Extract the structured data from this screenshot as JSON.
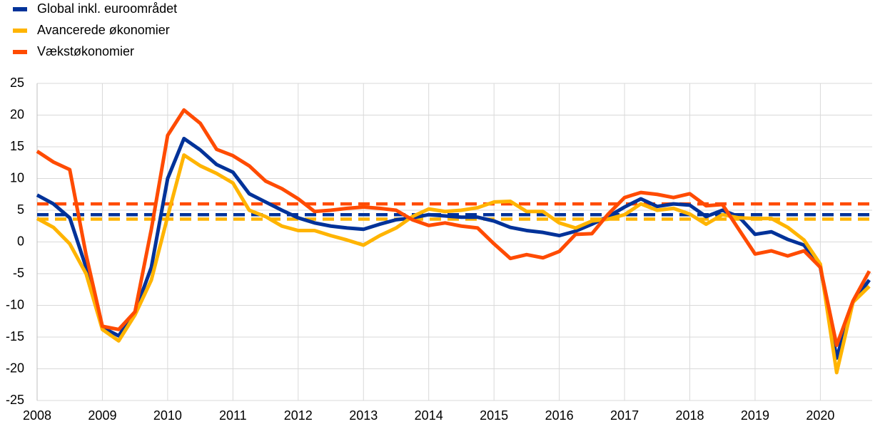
{
  "chart_data": {
    "type": "line",
    "categories": [
      "2008",
      null,
      null,
      null,
      "2009",
      null,
      null,
      null,
      "2010",
      null,
      null,
      null,
      "2011",
      null,
      null,
      null,
      "2012",
      null,
      null,
      null,
      "2013",
      null,
      null,
      null,
      "2014",
      null,
      null,
      null,
      "2015",
      null,
      null,
      null,
      "2016",
      null,
      null,
      null,
      "2017",
      null,
      null,
      null,
      "2018",
      null,
      null,
      null,
      "2019",
      null,
      null,
      null,
      "2020",
      null,
      null,
      null
    ],
    "ylim": [
      -25,
      25
    ],
    "yticks": [
      -25,
      -20,
      -15,
      -10,
      -5,
      0,
      5,
      10,
      15,
      20,
      25
    ],
    "grid": true,
    "legend": "top-left",
    "series": [
      {
        "name": "Global inkl. euroområdet",
        "color": "#003299",
        "average": 4.3,
        "values": [
          7.4,
          6,
          3.8,
          -4,
          -13.5,
          -14.8,
          -11,
          -4,
          10,
          16.3,
          14.5,
          12.2,
          11,
          7.6,
          6.3,
          5,
          3.8,
          3,
          2.5,
          2.2,
          2,
          2.8,
          3.5,
          3.8,
          4.3,
          4.1,
          3.9,
          3.9,
          3.3,
          2.3,
          1.8,
          1.5,
          1,
          1.7,
          2.8,
          4,
          5.5,
          6.8,
          5.6,
          6,
          5.8,
          4,
          5,
          4,
          1.2,
          1.6,
          0.4,
          -0.5,
          -4,
          -18.3,
          -9.5,
          -6
        ]
      },
      {
        "name": "Avancerede økonomier",
        "color": "#ffb400",
        "average": 3.6,
        "values": [
          3.7,
          2.3,
          -0.3,
          -5,
          -13.8,
          -15.6,
          -11.5,
          -6,
          4,
          13.7,
          12,
          10.8,
          9.3,
          5,
          4,
          2.5,
          1.8,
          1.8,
          1,
          0.3,
          -0.5,
          1,
          2.2,
          4,
          5.2,
          4.8,
          5,
          5.4,
          6.3,
          6.4,
          4.8,
          4.8,
          3,
          2.2,
          3.3,
          3.6,
          4.3,
          6,
          5,
          5.3,
          4.4,
          2.8,
          4.3,
          3.8,
          3.7,
          3.7,
          2.3,
          0.3,
          -3.5,
          -20.6,
          -9.5,
          -7
        ]
      },
      {
        "name": "Vækstøkonomier",
        "color": "#ff4b00",
        "average": 6,
        "values": [
          14.3,
          12.6,
          11.4,
          -2,
          -13.3,
          -13.8,
          -11,
          2,
          16.8,
          20.8,
          18.7,
          14.6,
          13.6,
          12,
          9.6,
          8.4,
          6.8,
          4.8,
          5,
          5.3,
          5.5,
          5.3,
          5,
          3.5,
          2.6,
          3,
          2.5,
          2.2,
          -0.3,
          -2.6,
          -2,
          -2.5,
          -1.5,
          1.2,
          1.3,
          4.4,
          7,
          7.8,
          7.5,
          7,
          7.6,
          5.7,
          5.9,
          2,
          -1.9,
          -1.4,
          -2.2,
          -1.4,
          -4,
          -16.3,
          -9.3,
          -4.6
        ]
      }
    ]
  }
}
